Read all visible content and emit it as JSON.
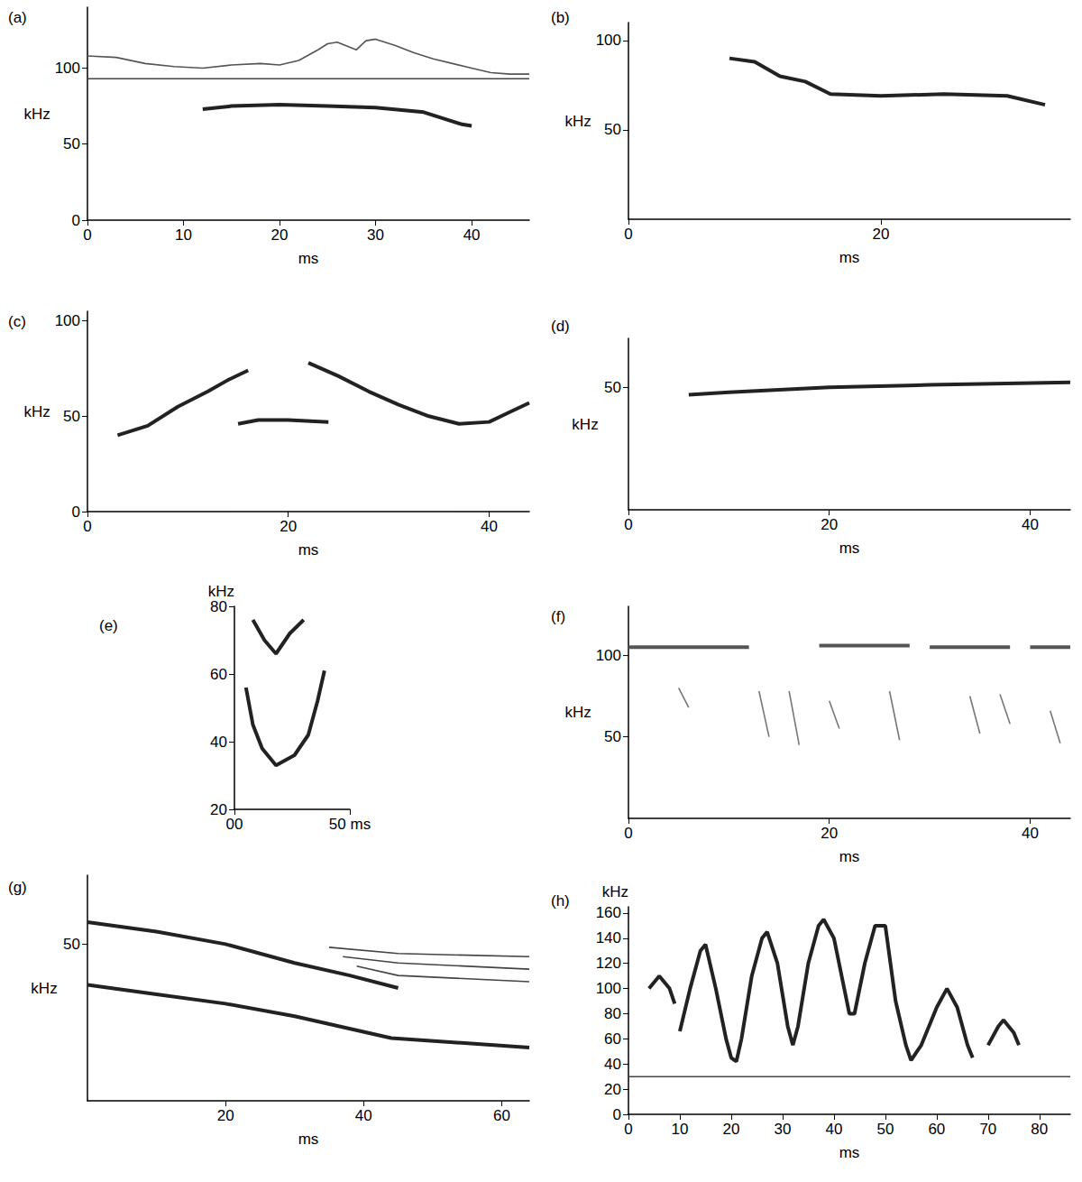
{
  "chart_data": [
    {
      "type": "line",
      "title": "(a)",
      "x_label": "ms",
      "y_label": "kHz",
      "xlim": [
        0,
        46
      ],
      "xticks": [
        0,
        10,
        20,
        30,
        40
      ],
      "ylim": [
        0,
        140
      ],
      "yticks": [
        0,
        50,
        100
      ],
      "grid": false,
      "series": [
        {
          "color": "#555555",
          "line_style": "thin",
          "x": [
            0,
            3,
            6,
            9,
            12,
            15,
            18,
            20,
            22,
            24,
            25,
            26,
            28,
            29,
            30,
            32,
            34,
            36,
            38,
            40,
            42,
            44,
            46
          ],
          "values": [
            108,
            107,
            103,
            101,
            100,
            102,
            103,
            102,
            105,
            112,
            116,
            117,
            112,
            118,
            119,
            115,
            110,
            106,
            103,
            100,
            97,
            96,
            96
          ]
        },
        {
          "color": "#444444",
          "line_style": "thin",
          "x": [
            0,
            46
          ],
          "values": [
            93,
            93
          ]
        },
        {
          "color": "#222222",
          "x": [
            12,
            15,
            20,
            25,
            30,
            35,
            37,
            39,
            40
          ],
          "values": [
            73,
            75,
            76,
            75,
            74,
            71,
            67,
            63,
            62
          ]
        }
      ]
    },
    {
      "type": "line",
      "title": "(b)",
      "x_label": "ms",
      "y_label": "kHz",
      "xlim": [
        0,
        35
      ],
      "xticks": [
        0,
        20
      ],
      "ylim": [
        0,
        110
      ],
      "yticks": [
        50,
        100
      ],
      "grid": false,
      "series": [
        {
          "color": "#222222",
          "x": [
            8,
            10,
            12,
            14,
            16,
            20,
            25,
            30,
            33
          ],
          "values": [
            90,
            88,
            80,
            77,
            70,
            69,
            70,
            69,
            64
          ]
        }
      ]
    },
    {
      "type": "line",
      "title": "(c)",
      "x_label": "ms",
      "y_label": "kHz",
      "xlim": [
        0,
        44
      ],
      "xticks": [
        0,
        20,
        40
      ],
      "ylim": [
        0,
        105
      ],
      "yticks": [
        0,
        50,
        100
      ],
      "grid": false,
      "series": [
        {
          "color": "#222222",
          "x": [
            3,
            6,
            9,
            12,
            14,
            16
          ],
          "values": [
            40,
            45,
            55,
            63,
            69,
            74
          ]
        },
        {
          "color": "#222222",
          "x": [
            15,
            17,
            20,
            24
          ],
          "values": [
            46,
            48,
            48,
            47
          ]
        },
        {
          "color": "#222222",
          "x": [
            22,
            25,
            28,
            31,
            34,
            37,
            40,
            42,
            44
          ],
          "values": [
            78,
            71,
            63,
            56,
            50,
            46,
            47,
            52,
            57
          ]
        }
      ]
    },
    {
      "type": "line",
      "title": "(d)",
      "x_label": "ms",
      "y_label": "kHz",
      "xlim": [
        0,
        44
      ],
      "xticks": [
        0,
        20,
        40
      ],
      "ylim": [
        0,
        70
      ],
      "yticks": [
        50
      ],
      "grid": false,
      "series": [
        {
          "color": "#222222",
          "x": [
            6,
            10,
            20,
            30,
            44
          ],
          "values": [
            47,
            48,
            50,
            51,
            52
          ]
        }
      ]
    },
    {
      "type": "line",
      "title": "(e)",
      "y_label": "kHz",
      "xlim": [
        0,
        50
      ],
      "xticks": [
        {
          "value": 0,
          "label": "00"
        },
        {
          "value": 50,
          "label": "50 ms"
        }
      ],
      "ylim": [
        20,
        80
      ],
      "yticks": [
        20,
        40,
        60,
        80
      ],
      "grid": false,
      "series": [
        {
          "color": "#222222",
          "x": [
            8,
            13,
            18,
            24,
            30
          ],
          "values": [
            76,
            70,
            66,
            72,
            76
          ]
        },
        {
          "color": "#222222",
          "x": [
            5,
            8,
            12,
            18,
            26,
            32,
            36,
            39
          ],
          "values": [
            56,
            45,
            38,
            33,
            36,
            42,
            52,
            61
          ]
        }
      ]
    },
    {
      "type": "line",
      "title": "(f)",
      "x_label": "ms",
      "y_label": "kHz",
      "xlim": [
        0,
        44
      ],
      "xticks": [
        0,
        20,
        40
      ],
      "ylim": [
        0,
        130
      ],
      "yticks": [
        50,
        100
      ],
      "grid": false,
      "series": [
        {
          "color": "#555555",
          "x": [
            0,
            12,
            12,
            19,
            28,
            28,
            30,
            38,
            38,
            40,
            44
          ],
          "values": [
            105,
            105,
            null,
            106,
            106,
            null,
            105,
            105,
            null,
            105,
            105
          ]
        },
        {
          "color": "#777777",
          "line_style": "thin",
          "x": [
            5,
            6,
            6,
            13,
            14,
            14,
            16,
            17,
            17,
            20,
            21,
            21,
            26,
            27,
            27,
            34,
            35,
            35,
            37,
            38,
            38,
            42,
            43
          ],
          "values": [
            80,
            68,
            null,
            78,
            50,
            null,
            78,
            45,
            null,
            72,
            55,
            null,
            78,
            48,
            null,
            75,
            52,
            null,
            76,
            58,
            null,
            66,
            46
          ]
        }
      ]
    },
    {
      "type": "line",
      "title": "(g)",
      "x_label": "ms",
      "y_label": "kHz",
      "xlim": [
        0,
        64
      ],
      "xticks": [
        20,
        40,
        60
      ],
      "ylim": [
        0,
        72
      ],
      "yticks": [
        50
      ],
      "grid": false,
      "series": [
        {
          "color": "#222222",
          "x": [
            0,
            10,
            20,
            30,
            38,
            45
          ],
          "values": [
            57,
            54,
            50,
            44,
            40,
            36
          ]
        },
        {
          "color": "#222222",
          "x": [
            0,
            10,
            20,
            30,
            44,
            64
          ],
          "values": [
            37,
            34,
            31,
            27,
            20,
            17
          ]
        },
        {
          "color": "#444444",
          "line_style": "thin",
          "x": [
            35,
            45,
            64
          ],
          "values": [
            49,
            47,
            46
          ]
        },
        {
          "color": "#444444",
          "line_style": "thin",
          "x": [
            37,
            45,
            64
          ],
          "values": [
            46,
            44,
            42
          ]
        },
        {
          "color": "#444444",
          "line_style": "thin",
          "x": [
            39,
            45,
            64
          ],
          "values": [
            43,
            40,
            38
          ]
        }
      ]
    },
    {
      "type": "line",
      "title": "(h)",
      "x_label": "ms",
      "y_label": "kHz",
      "xlim": [
        0,
        86
      ],
      "xticks": [
        0,
        10,
        20,
        30,
        40,
        50,
        60,
        70,
        80
      ],
      "ylim": [
        0,
        165
      ],
      "yticks": [
        0,
        20,
        40,
        60,
        80,
        100,
        120,
        140,
        160
      ],
      "grid": false,
      "series": [
        {
          "color": "#222222",
          "x": [
            4,
            6,
            8,
            9,
            9,
            10,
            12,
            14,
            15,
            17,
            19,
            20,
            21,
            22,
            24,
            26,
            27,
            29,
            31,
            32,
            33,
            35,
            37,
            38,
            40,
            42,
            43,
            44,
            46,
            48,
            50,
            52,
            54,
            55,
            57,
            60,
            62,
            64,
            66,
            67,
            67,
            70,
            72,
            73,
            75,
            76
          ],
          "values": [
            100,
            110,
            100,
            88,
            null,
            66,
            100,
            130,
            135,
            100,
            60,
            45,
            42,
            60,
            110,
            140,
            145,
            120,
            70,
            55,
            70,
            120,
            150,
            155,
            140,
            100,
            80,
            80,
            120,
            150,
            150,
            90,
            55,
            43,
            55,
            85,
            100,
            85,
            55,
            45,
            null,
            55,
            70,
            75,
            65,
            55
          ]
        },
        {
          "color": "#444444",
          "line_style": "thin",
          "x": [
            0,
            86
          ],
          "values": [
            30,
            30
          ]
        }
      ]
    }
  ]
}
